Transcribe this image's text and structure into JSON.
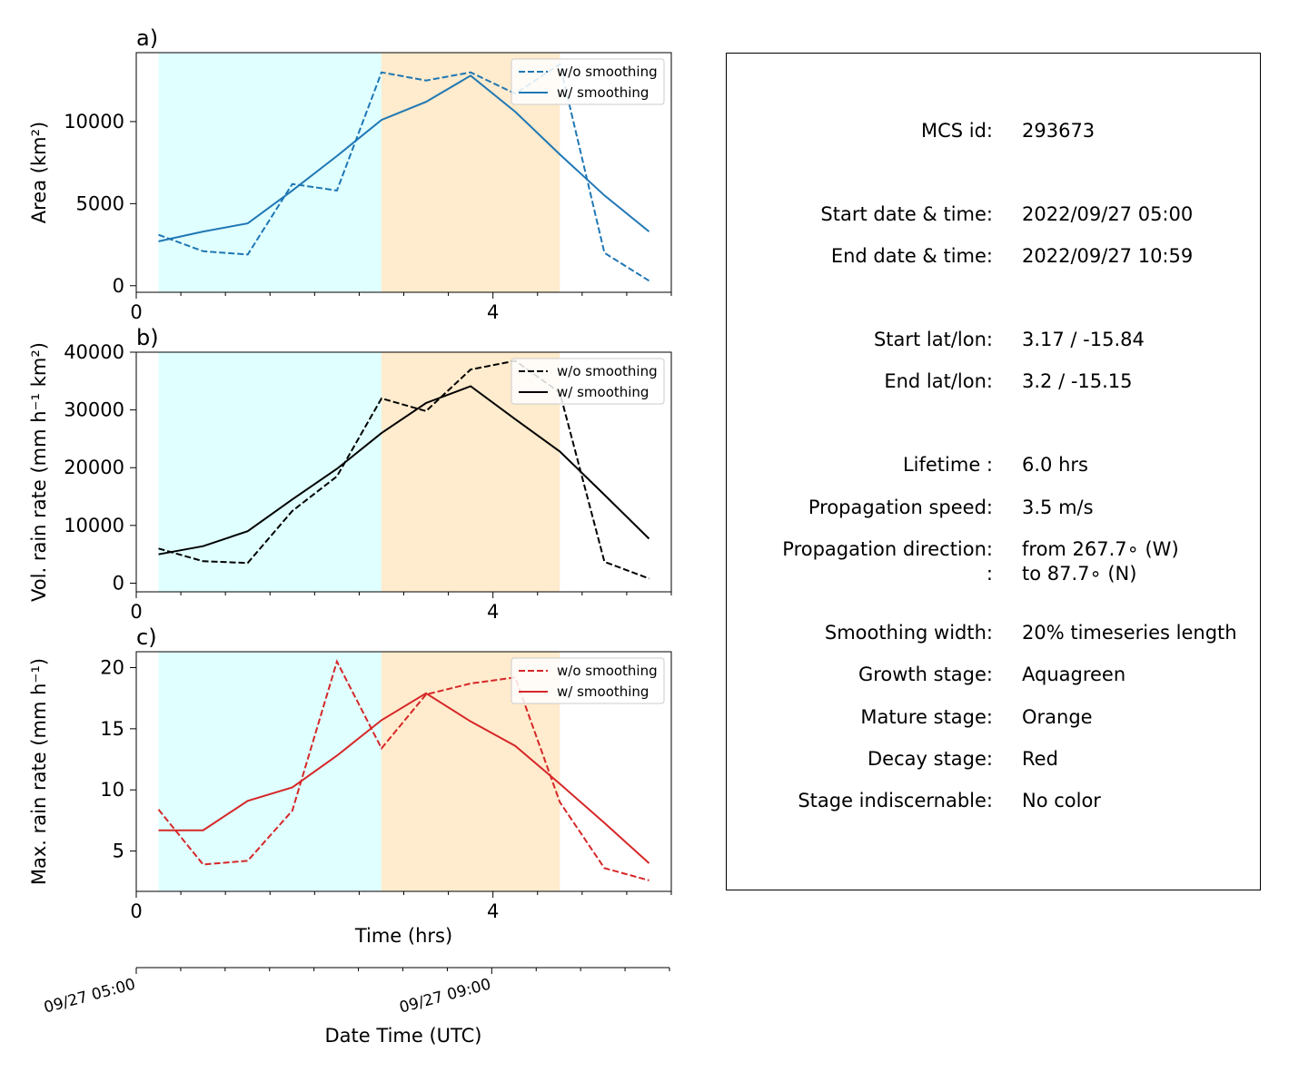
{
  "chart_data": [
    {
      "type": "line",
      "panel_label": "a)",
      "ylabel": "Area  (km²)",
      "xlabel": "",
      "xlim": [
        0,
        6
      ],
      "ylim": [
        -400,
        14200
      ],
      "xticks": [
        0,
        4
      ],
      "yticks": [
        0,
        5000,
        10000
      ],
      "ytick_labels": [
        "0",
        "5000",
        "10000"
      ],
      "color": "#1f77b4",
      "x": [
        0.25,
        0.75,
        1.25,
        1.75,
        2.25,
        2.75,
        3.25,
        3.75,
        4.25,
        4.75,
        5.25,
        5.75
      ],
      "series": [
        {
          "name": "w/o smoothing",
          "style": "dashed",
          "values": [
            3100,
            2100,
            1900,
            6200,
            5800,
            13000,
            12500,
            13000,
            11700,
            13500,
            2000,
            300
          ]
        },
        {
          "name": "w/ smoothing",
          "style": "solid",
          "values": [
            2700,
            3300,
            3800,
            5800,
            7900,
            10100,
            11200,
            12800,
            10600,
            8000,
            5500,
            3300
          ]
        }
      ],
      "legend": "top-right"
    },
    {
      "type": "line",
      "panel_label": "b)",
      "ylabel": "Vol. rain rate (mm h⁻¹ km²)",
      "xlabel": "",
      "xlim": [
        0,
        6
      ],
      "ylim": [
        -1500,
        40000
      ],
      "xticks": [
        0,
        4
      ],
      "yticks": [
        0,
        10000,
        20000,
        30000,
        40000
      ],
      "ytick_labels": [
        "0",
        "10000",
        "20000",
        "30000",
        "40000"
      ],
      "color": "#000000",
      "x": [
        0.25,
        0.75,
        1.25,
        1.75,
        2.25,
        2.75,
        3.25,
        3.75,
        4.25,
        4.75,
        5.25,
        5.75
      ],
      "series": [
        {
          "name": "w/o smoothing",
          "style": "dashed",
          "values": [
            6000,
            3800,
            3500,
            12500,
            18500,
            32000,
            29800,
            37000,
            38500,
            33000,
            3700,
            800
          ]
        },
        {
          "name": "w/ smoothing",
          "style": "solid",
          "values": [
            5000,
            6400,
            9000,
            14500,
            19800,
            26000,
            31200,
            34100,
            28400,
            22800,
            15300,
            7700
          ]
        }
      ],
      "legend": "top-right"
    },
    {
      "type": "line",
      "panel_label": "c)",
      "ylabel": "Max. rain rate  (mm h⁻¹)",
      "xlabel": "Time (hrs)",
      "xlim": [
        0,
        6
      ],
      "ylim": [
        1.7,
        21.3
      ],
      "xticks": [
        0,
        4
      ],
      "yticks": [
        5,
        10,
        15,
        20
      ],
      "ytick_labels": [
        "5",
        "10",
        "15",
        "20"
      ],
      "color": "#d62728",
      "x": [
        0.25,
        0.75,
        1.25,
        1.75,
        2.25,
        2.75,
        3.25,
        3.75,
        4.25,
        4.75,
        5.25,
        5.75
      ],
      "series": [
        {
          "name": "w/o smoothing",
          "style": "dashed",
          "values": [
            8.4,
            3.9,
            4.2,
            8.3,
            20.5,
            13.4,
            17.8,
            18.7,
            19.2,
            9.0,
            3.6,
            2.6
          ]
        },
        {
          "name": "w/ smoothing",
          "style": "solid",
          "values": [
            6.7,
            6.7,
            9.1,
            10.2,
            12.8,
            15.7,
            17.9,
            15.6,
            13.6,
            10.5,
            7.3,
            4.0
          ]
        }
      ],
      "legend": "top-right"
    }
  ],
  "stages": [
    {
      "name": "Growth stage",
      "from": 0.25,
      "to": 2.75,
      "color": "#e0ffff"
    },
    {
      "name": "Mature stage",
      "from": 2.75,
      "to": 4.75,
      "color": "#ffebcd"
    }
  ],
  "date_axis": {
    "xlabel": "Date Time (UTC)",
    "tick_labels": [
      "09/27 05:00",
      "09/27 09:00"
    ],
    "tick_hours": [
      0,
      4
    ]
  },
  "info": {
    "rows": [
      {
        "label": "MCS id:",
        "value": "293673"
      },
      {
        "label": "Start date & time:",
        "value": "2022/09/27 05:00"
      },
      {
        "label": "End date & time:",
        "value": "2022/09/27 10:59"
      },
      {
        "label": "Start lat/lon:",
        "value": "3.17 / -15.84"
      },
      {
        "label": "End lat/lon:",
        "value": "3.2 / -15.15"
      },
      {
        "label": "Lifetime :",
        "value": "6.0 hrs"
      },
      {
        "label": "Propagation speed:",
        "value": "3.5 m/s"
      },
      {
        "label": "Propagation direction:",
        "value": "from 267.7∘ (W)"
      },
      {
        "label": ":",
        "value": "to    87.7∘ (N)"
      },
      {
        "label": "Smoothing width:",
        "value": "20% timeseries length"
      },
      {
        "label": "Growth stage:",
        "value": "Aquagreen"
      },
      {
        "label": "Mature stage:",
        "value": "Orange"
      },
      {
        "label": "Decay stage:",
        "value": "Red"
      },
      {
        "label": "Stage indiscernable:",
        "value": "No color"
      }
    ]
  }
}
